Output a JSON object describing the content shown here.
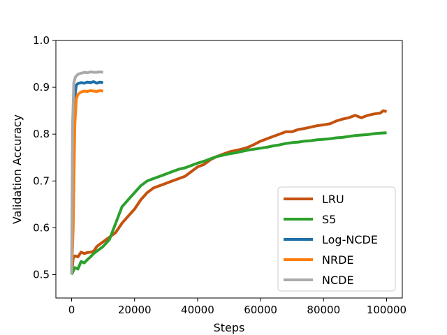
{
  "chart_data": {
    "type": "line",
    "title": "",
    "xlabel": "Steps",
    "ylabel": "Validation Accuracy",
    "xlim": [
      -5000,
      105000
    ],
    "ylim": [
      0.45,
      1.0
    ],
    "xticks": [
      0,
      20000,
      40000,
      60000,
      80000,
      100000
    ],
    "xtick_labels": [
      "0",
      "20000",
      "40000",
      "60000",
      "80000",
      "100000"
    ],
    "yticks": [
      0.5,
      0.6,
      0.7,
      0.8,
      0.9,
      1.0
    ],
    "ytick_labels": [
      "0.5",
      "0.6",
      "0.7",
      "0.8",
      "0.9",
      "1.0"
    ],
    "grid": false,
    "legend_position": "lower-right",
    "series": [
      {
        "name": "LRU",
        "color": "#c4520e",
        "x": [
          0,
          500,
          1000,
          2000,
          3000,
          4000,
          5000,
          6000,
          7000,
          8000,
          9000,
          10000,
          12000,
          14000,
          16000,
          18000,
          20000,
          22000,
          24000,
          26000,
          28000,
          30000,
          32000,
          34000,
          36000,
          38000,
          40000,
          42000,
          44000,
          46000,
          48000,
          50000,
          52000,
          54000,
          56000,
          58000,
          60000,
          62000,
          64000,
          66000,
          68000,
          70000,
          72000,
          74000,
          76000,
          78000,
          80000,
          82000,
          84000,
          86000,
          88000,
          90000,
          92000,
          94000,
          96000,
          98000,
          99000,
          100000
        ],
        "y": [
          0.5,
          0.535,
          0.54,
          0.538,
          0.548,
          0.545,
          0.547,
          0.548,
          0.55,
          0.56,
          0.565,
          0.57,
          0.58,
          0.59,
          0.61,
          0.625,
          0.64,
          0.66,
          0.675,
          0.685,
          0.69,
          0.695,
          0.7,
          0.705,
          0.71,
          0.72,
          0.73,
          0.735,
          0.745,
          0.752,
          0.757,
          0.762,
          0.765,
          0.768,
          0.772,
          0.778,
          0.785,
          0.79,
          0.795,
          0.8,
          0.805,
          0.805,
          0.81,
          0.812,
          0.815,
          0.818,
          0.82,
          0.822,
          0.828,
          0.832,
          0.835,
          0.84,
          0.835,
          0.84,
          0.843,
          0.845,
          0.85,
          0.848
        ]
      },
      {
        "name": "S5",
        "color": "#2ca02c",
        "x": [
          0,
          1000,
          2000,
          3000,
          4000,
          5000,
          6000,
          7000,
          8000,
          9000,
          10000,
          12000,
          14000,
          16000,
          18000,
          20000,
          22000,
          24000,
          26000,
          28000,
          30000,
          32000,
          34000,
          36000,
          38000,
          40000,
          42000,
          44000,
          46000,
          48000,
          50000,
          52000,
          54000,
          56000,
          58000,
          60000,
          62000,
          64000,
          66000,
          68000,
          70000,
          72000,
          74000,
          76000,
          78000,
          80000,
          82000,
          84000,
          86000,
          88000,
          90000,
          92000,
          94000,
          96000,
          98000,
          100000
        ],
        "y": [
          0.5,
          0.515,
          0.512,
          0.528,
          0.525,
          0.532,
          0.538,
          0.545,
          0.55,
          0.555,
          0.56,
          0.575,
          0.61,
          0.645,
          0.66,
          0.675,
          0.69,
          0.7,
          0.705,
          0.71,
          0.715,
          0.72,
          0.725,
          0.728,
          0.733,
          0.738,
          0.742,
          0.747,
          0.752,
          0.755,
          0.758,
          0.76,
          0.763,
          0.766,
          0.768,
          0.77,
          0.772,
          0.775,
          0.777,
          0.78,
          0.782,
          0.783,
          0.785,
          0.786,
          0.788,
          0.789,
          0.79,
          0.792,
          0.793,
          0.795,
          0.797,
          0.798,
          0.799,
          0.801,
          0.802,
          0.803
        ]
      },
      {
        "name": "Log-NCDE",
        "color": "#1f6fa8",
        "x": [
          0,
          500,
          1000,
          1500,
          2000,
          3000,
          4000,
          5000,
          6000,
          7000,
          8000,
          9000,
          10000
        ],
        "y": [
          0.5,
          0.7,
          0.88,
          0.905,
          0.908,
          0.91,
          0.909,
          0.911,
          0.91,
          0.912,
          0.909,
          0.911,
          0.91
        ]
      },
      {
        "name": "NRDE",
        "color": "#ff7f0e",
        "x": [
          0,
          500,
          1000,
          1500,
          2000,
          3000,
          4000,
          5000,
          6000,
          7000,
          8000,
          9000,
          10000
        ],
        "y": [
          0.5,
          0.6,
          0.82,
          0.875,
          0.885,
          0.89,
          0.892,
          0.891,
          0.893,
          0.892,
          0.891,
          0.893,
          0.892
        ]
      },
      {
        "name": "NCDE",
        "color": "#aaaaaa",
        "x": [
          0,
          300,
          700,
          1200,
          2000,
          3000,
          4000,
          5000,
          6000,
          7000,
          8000,
          9000,
          10000
        ],
        "y": [
          0.5,
          0.82,
          0.91,
          0.922,
          0.928,
          0.93,
          0.932,
          0.931,
          0.933,
          0.932,
          0.932,
          0.933,
          0.932
        ]
      }
    ]
  }
}
